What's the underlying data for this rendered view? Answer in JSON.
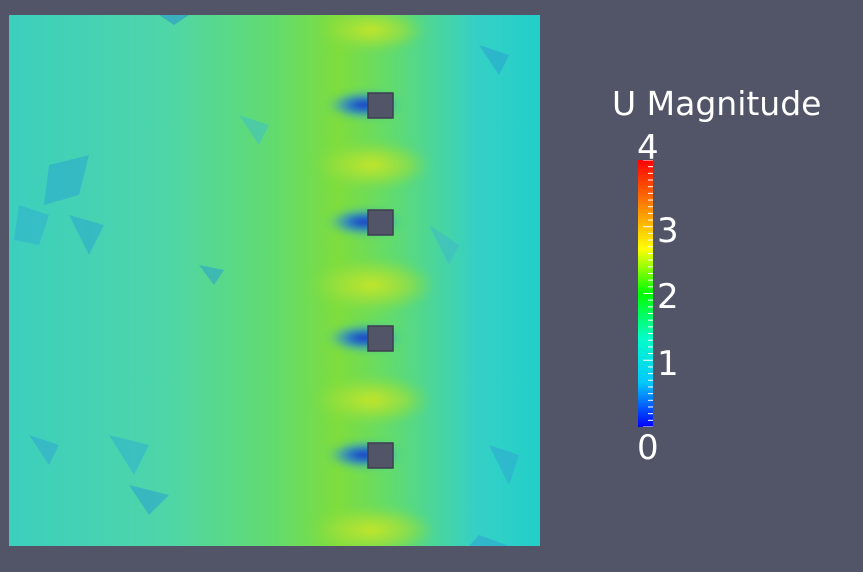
{
  "scene": {
    "background": "#525467",
    "field": "velocity magnitude pseudocolor slice",
    "obstacles": 4,
    "obstacle_color": "#525467"
  },
  "colorbar": {
    "title": "U Magnitude",
    "min": 0,
    "max": 4,
    "tick_labels": [
      "4",
      "3",
      "2",
      "1",
      "0"
    ],
    "colormap": [
      "#0000ff",
      "#00c8ff",
      "#00ffc8",
      "#00ff00",
      "#ffff00",
      "#ff8000",
      "#ff0000"
    ]
  }
}
